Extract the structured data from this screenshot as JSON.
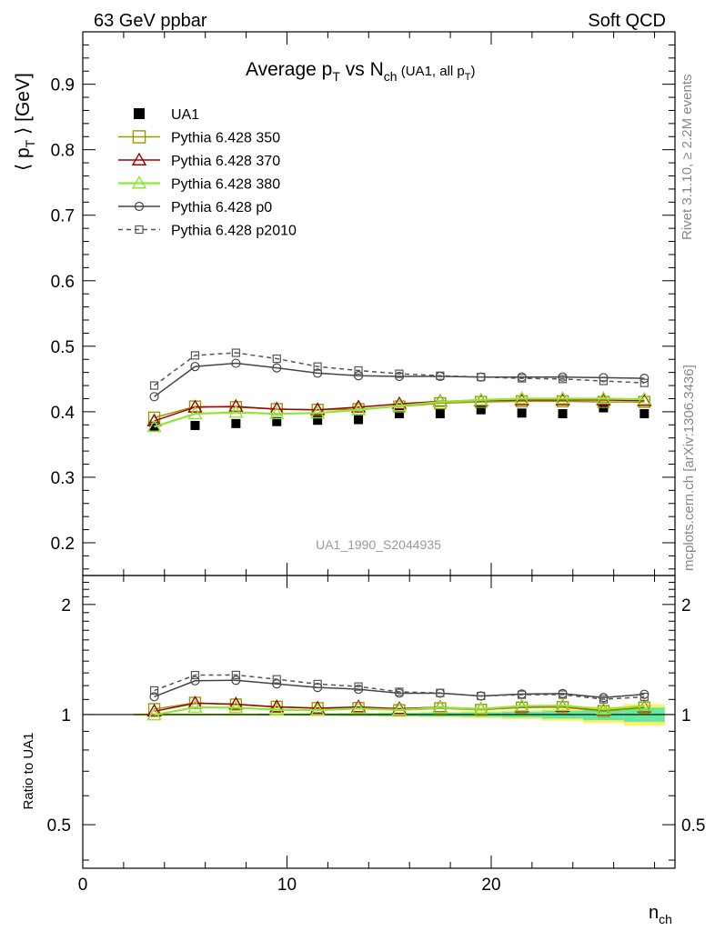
{
  "header": {
    "left": "63 GeV ppbar",
    "right": "Soft QCD"
  },
  "side_labels": {
    "rivet": "Rivet 3.1.10, ≥ 2.2M events",
    "mcplots": "mcplots.cern.ch [arXiv:1306.3436]"
  },
  "chart_data": [
    {
      "type": "line",
      "title": "Average p_T vs N_ch (UA1, all p_T)",
      "ylabel": "⟨ p_T ⟩ [GeV]",
      "xlabel": "n_ch",
      "watermark": "UA1_1990_S2044935",
      "xlim": [
        0,
        29
      ],
      "ylim": [
        0.15,
        0.98
      ],
      "yticks": [
        0.2,
        0.3,
        0.4,
        0.5,
        0.6,
        0.7,
        0.8,
        0.9
      ],
      "xticks": [
        0,
        10,
        20
      ],
      "legend_position": "top-left",
      "x": [
        3.5,
        5.5,
        7.5,
        9.5,
        11.5,
        13.5,
        15.5,
        17.5,
        19.5,
        21.5,
        23.5,
        25.5,
        27.5
      ],
      "series": [
        {
          "name": "UA1",
          "style": "data",
          "color": "#000000",
          "values": [
            0.378,
            0.379,
            0.382,
            0.385,
            0.387,
            0.388,
            0.397,
            0.397,
            0.403,
            0.398,
            0.397,
            0.406,
            0.397
          ]
        },
        {
          "name": "Pythia 6.428 350",
          "marker": "square",
          "color": "#999900",
          "dash": false,
          "values": [
            0.391,
            0.408,
            0.407,
            0.404,
            0.403,
            0.404,
            0.408,
            0.413,
            0.415,
            0.416,
            0.416,
            0.415,
            0.415
          ]
        },
        {
          "name": "Pythia 6.428 370",
          "marker": "triangle",
          "color": "#a00000",
          "dash": false,
          "values": [
            0.386,
            0.407,
            0.408,
            0.404,
            0.403,
            0.407,
            0.412,
            0.416,
            0.417,
            0.418,
            0.418,
            0.418,
            0.417
          ]
        },
        {
          "name": "Pythia 6.428 380",
          "marker": "triangle",
          "color": "#8ee636",
          "dash": false,
          "values": [
            0.377,
            0.397,
            0.399,
            0.397,
            0.398,
            0.403,
            0.409,
            0.415,
            0.418,
            0.42,
            0.42,
            0.42,
            0.419
          ]
        },
        {
          "name": "Pythia 6.428 p0",
          "marker": "circle",
          "color": "#444444",
          "dash": false,
          "values": [
            0.423,
            0.469,
            0.474,
            0.467,
            0.459,
            0.455,
            0.454,
            0.454,
            0.453,
            0.453,
            0.453,
            0.452,
            0.451
          ]
        },
        {
          "name": "Pythia 6.428 p2010",
          "marker": "square-small",
          "color": "#555555",
          "dash": true,
          "values": [
            0.44,
            0.486,
            0.49,
            0.481,
            0.469,
            0.463,
            0.458,
            0.455,
            0.453,
            0.451,
            0.45,
            0.447,
            0.444
          ]
        }
      ]
    },
    {
      "type": "line",
      "ylabel": "Ratio to UA1",
      "xlabel": "n_ch",
      "xlim": [
        0,
        29
      ],
      "ylim": [
        0.38,
        2.4
      ],
      "yscale": "log",
      "yticks": [
        0.5,
        1,
        2
      ],
      "reference_line": 1,
      "x": [
        3.5,
        5.5,
        7.5,
        9.5,
        11.5,
        13.5,
        15.5,
        17.5,
        19.5,
        21.5,
        23.5,
        25.5,
        27.5
      ],
      "uncertainty_band": {
        "inner_color": "#66e8a0",
        "outer_color": "#fff06a",
        "inner_halfwidth": [
          0.005,
          0.005,
          0.005,
          0.006,
          0.007,
          0.008,
          0.01,
          0.012,
          0.014,
          0.018,
          0.025,
          0.035,
          0.045
        ],
        "outer_halfwidth": [
          0.008,
          0.008,
          0.008,
          0.009,
          0.01,
          0.012,
          0.015,
          0.018,
          0.022,
          0.028,
          0.038,
          0.052,
          0.068
        ]
      },
      "series": [
        {
          "name": "Pythia 6.428 350",
          "values": [
            1.035,
            1.077,
            1.065,
            1.05,
            1.041,
            1.042,
            1.028,
            1.04,
            1.03,
            1.045,
            1.048,
            1.022,
            1.045
          ]
        },
        {
          "name": "Pythia 6.428 370",
          "values": [
            1.021,
            1.074,
            1.068,
            1.049,
            1.041,
            1.049,
            1.038,
            1.048,
            1.035,
            1.05,
            1.053,
            1.03,
            1.05
          ]
        },
        {
          "name": "Pythia 6.428 380",
          "values": [
            0.997,
            1.047,
            1.044,
            1.031,
            1.028,
            1.039,
            1.03,
            1.045,
            1.037,
            1.055,
            1.058,
            1.034,
            1.055
          ]
        },
        {
          "name": "Pythia 6.428 p0",
          "values": [
            1.119,
            1.237,
            1.241,
            1.213,
            1.186,
            1.173,
            1.144,
            1.144,
            1.124,
            1.138,
            1.141,
            1.113,
            1.136
          ]
        },
        {
          "name": "Pythia 6.428 p2010",
          "values": [
            1.164,
            1.282,
            1.283,
            1.249,
            1.212,
            1.193,
            1.154,
            1.146,
            1.124,
            1.133,
            1.134,
            1.101,
            1.118
          ]
        }
      ]
    }
  ]
}
